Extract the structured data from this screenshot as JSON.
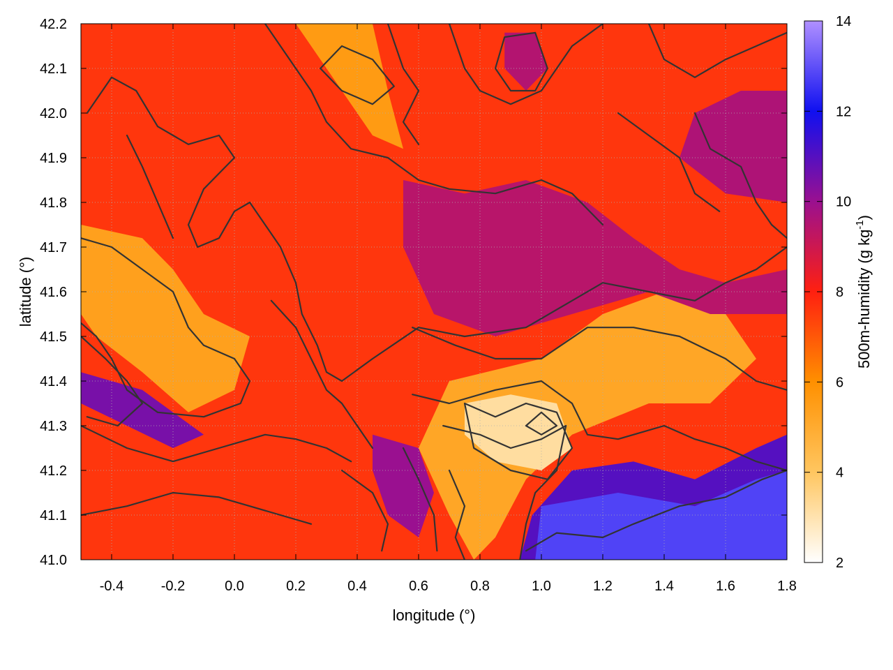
{
  "chart_data": {
    "type": "heatmap",
    "title": "",
    "xlabel": "longitude (°)",
    "ylabel": "latitude (°)",
    "xlim": [
      -0.5,
      1.8
    ],
    "ylim": [
      41.0,
      42.2
    ],
    "xticks": [
      -0.4,
      -0.2,
      0.0,
      0.2,
      0.4,
      0.6,
      0.8,
      1.0,
      1.2,
      1.4,
      1.6,
      1.8
    ],
    "xtick_labels": [
      "-0.4",
      "-0.2",
      "0.0",
      "0.2",
      "0.4",
      "0.6",
      "0.8",
      "1.0",
      "1.2",
      "1.4",
      "1.6",
      "1.8"
    ],
    "yticks": [
      41.0,
      41.1,
      41.2,
      41.3,
      41.4,
      41.5,
      41.6,
      41.7,
      41.8,
      41.9,
      42.0,
      42.1,
      42.2
    ],
    "ytick_labels": [
      "41.0",
      "41.1",
      "41.2",
      "41.3",
      "41.4",
      "41.5",
      "41.6",
      "41.7",
      "41.8",
      "41.9",
      "42.0",
      "42.1",
      "42.2"
    ],
    "grid": true,
    "colorbar": {
      "label_main": "500m-humidity (g kg",
      "label_sup": "-1",
      "label_end": ")",
      "range": [
        2,
        14
      ],
      "ticks": [
        2,
        4,
        6,
        8,
        10,
        12,
        14
      ],
      "tick_labels": [
        "2",
        "4",
        "6",
        "8",
        "10",
        "12",
        "14"
      ],
      "colormap": [
        {
          "value": 2,
          "color": "#ffffff"
        },
        {
          "value": 4,
          "color": "#ffc660"
        },
        {
          "value": 6,
          "color": "#ff9000"
        },
        {
          "value": 8,
          "color": "#ff2010"
        },
        {
          "value": 10,
          "color": "#9a1090"
        },
        {
          "value": 12,
          "color": "#1010f0"
        },
        {
          "value": 14,
          "color": "#b090ff"
        }
      ]
    },
    "humidity_regions": [
      {
        "level": 7.6,
        "lon": [
          [
            -0.5,
            42.2
          ],
          [
            1.8,
            42.2
          ],
          [
            1.8,
            41.0
          ],
          [
            -0.5,
            41.0
          ]
        ]
      },
      {
        "level": 5.6,
        "lon": [
          [
            0.2,
            42.2
          ],
          [
            0.35,
            42.05
          ],
          [
            0.45,
            41.95
          ],
          [
            0.55,
            41.92
          ],
          [
            0.5,
            42.05
          ],
          [
            0.45,
            42.2
          ]
        ]
      },
      {
        "level": 5.4,
        "lon": [
          [
            -0.5,
            41.75
          ],
          [
            -0.3,
            41.72
          ],
          [
            -0.2,
            41.65
          ],
          [
            -0.1,
            41.55
          ],
          [
            0.05,
            41.5
          ],
          [
            0.0,
            41.38
          ],
          [
            -0.15,
            41.33
          ],
          [
            -0.3,
            41.42
          ],
          [
            -0.45,
            41.5
          ],
          [
            -0.5,
            41.55
          ]
        ]
      },
      {
        "level": 5.2,
        "lon": [
          [
            0.7,
            41.4
          ],
          [
            1.0,
            41.45
          ],
          [
            1.2,
            41.55
          ],
          [
            1.4,
            41.6
          ],
          [
            1.6,
            41.55
          ],
          [
            1.7,
            41.45
          ],
          [
            1.55,
            41.35
          ],
          [
            1.35,
            41.35
          ],
          [
            1.1,
            41.28
          ],
          [
            0.95,
            41.18
          ],
          [
            0.85,
            41.05
          ],
          [
            0.78,
            41.0
          ],
          [
            0.7,
            41.1
          ],
          [
            0.6,
            41.25
          ]
        ]
      },
      {
        "level": 3.2,
        "lon": [
          [
            0.75,
            41.35
          ],
          [
            0.9,
            41.37
          ],
          [
            1.05,
            41.35
          ],
          [
            1.1,
            41.25
          ],
          [
            1.0,
            41.2
          ],
          [
            0.85,
            41.22
          ],
          [
            0.75,
            41.28
          ]
        ]
      },
      {
        "level": 9.4,
        "lon": [
          [
            0.55,
            41.85
          ],
          [
            0.75,
            41.82
          ],
          [
            0.95,
            41.85
          ],
          [
            1.15,
            41.8
          ],
          [
            1.3,
            41.72
          ],
          [
            1.45,
            41.65
          ],
          [
            1.6,
            41.62
          ],
          [
            1.8,
            41.65
          ],
          [
            1.8,
            41.55
          ],
          [
            1.55,
            41.55
          ],
          [
            1.35,
            41.6
          ],
          [
            1.1,
            41.55
          ],
          [
            0.85,
            41.5
          ],
          [
            0.65,
            41.55
          ],
          [
            0.55,
            41.7
          ]
        ]
      },
      {
        "level": 9.6,
        "lon": [
          [
            1.5,
            42.0
          ],
          [
            1.65,
            42.05
          ],
          [
            1.8,
            42.05
          ],
          [
            1.8,
            41.8
          ],
          [
            1.6,
            41.82
          ],
          [
            1.45,
            41.9
          ]
        ]
      },
      {
        "level": 9.5,
        "lon": [
          [
            0.88,
            42.18
          ],
          [
            0.98,
            42.18
          ],
          [
            1.02,
            42.1
          ],
          [
            0.95,
            42.05
          ],
          [
            0.88,
            42.1
          ]
        ]
      },
      {
        "level": 10.5,
        "lon": [
          [
            -0.5,
            41.35
          ],
          [
            -0.35,
            41.3
          ],
          [
            -0.2,
            41.25
          ],
          [
            -0.1,
            41.28
          ],
          [
            -0.3,
            41.38
          ],
          [
            -0.5,
            41.42
          ]
        ]
      },
      {
        "level": 10.0,
        "lon": [
          [
            0.45,
            41.28
          ],
          [
            0.6,
            41.25
          ],
          [
            0.65,
            41.15
          ],
          [
            0.6,
            41.05
          ],
          [
            0.5,
            41.1
          ],
          [
            0.45,
            41.2
          ]
        ]
      },
      {
        "level": 11.0,
        "lon": [
          [
            0.97,
            41.1
          ],
          [
            1.1,
            41.2
          ],
          [
            1.3,
            41.22
          ],
          [
            1.5,
            41.18
          ],
          [
            1.7,
            41.25
          ],
          [
            1.8,
            41.28
          ],
          [
            1.8,
            41.0
          ],
          [
            0.93,
            41.0
          ]
        ]
      },
      {
        "level": 12.8,
        "lon": [
          [
            1.0,
            41.12
          ],
          [
            1.25,
            41.15
          ],
          [
            1.5,
            41.12
          ],
          [
            1.7,
            41.18
          ],
          [
            1.8,
            41.2
          ],
          [
            1.8,
            41.0
          ],
          [
            0.98,
            41.0
          ]
        ]
      }
    ],
    "contour_lines": [
      [
        [
          -0.48,
          42.0
        ],
        [
          -0.4,
          42.08
        ],
        [
          -0.32,
          42.05
        ],
        [
          -0.25,
          41.97
        ],
        [
          -0.15,
          41.93
        ],
        [
          -0.05,
          41.95
        ],
        [
          0.0,
          41.9
        ],
        [
          -0.1,
          41.83
        ],
        [
          -0.15,
          41.75
        ],
        [
          -0.12,
          41.7
        ],
        [
          -0.05,
          41.72
        ],
        [
          0.0,
          41.78
        ],
        [
          0.05,
          41.8
        ],
        [
          0.1,
          41.75
        ],
        [
          0.15,
          41.7
        ],
        [
          0.2,
          41.62
        ],
        [
          0.22,
          41.55
        ],
        [
          0.27,
          41.48
        ],
        [
          0.3,
          41.42
        ],
        [
          0.35,
          41.4
        ],
        [
          0.45,
          41.45
        ],
        [
          0.6,
          41.52
        ],
        [
          0.75,
          41.5
        ],
        [
          0.95,
          41.52
        ],
        [
          1.1,
          41.58
        ],
        [
          1.2,
          41.62
        ],
        [
          1.35,
          41.6
        ],
        [
          1.5,
          41.58
        ],
        [
          1.6,
          41.62
        ],
        [
          1.7,
          41.65
        ],
        [
          1.8,
          41.7
        ]
      ],
      [
        [
          -0.5,
          41.72
        ],
        [
          -0.4,
          41.7
        ],
        [
          -0.3,
          41.65
        ],
        [
          -0.2,
          41.6
        ],
        [
          -0.15,
          41.52
        ],
        [
          -0.1,
          41.48
        ],
        [
          0.0,
          41.45
        ],
        [
          0.05,
          41.4
        ],
        [
          0.02,
          41.35
        ],
        [
          -0.1,
          41.32
        ],
        [
          -0.25,
          41.33
        ],
        [
          -0.35,
          41.38
        ],
        [
          -0.4,
          41.45
        ],
        [
          -0.45,
          41.5
        ],
        [
          -0.5,
          41.53
        ]
      ],
      [
        [
          -0.5,
          41.3
        ],
        [
          -0.35,
          41.25
        ],
        [
          -0.2,
          41.22
        ],
        [
          -0.05,
          41.25
        ],
        [
          0.1,
          41.28
        ],
        [
          0.2,
          41.27
        ],
        [
          0.3,
          41.25
        ],
        [
          0.38,
          41.22
        ]
      ],
      [
        [
          -0.5,
          41.1
        ],
        [
          -0.35,
          41.12
        ],
        [
          -0.2,
          41.15
        ],
        [
          -0.05,
          41.14
        ],
        [
          0.05,
          41.12
        ],
        [
          0.15,
          41.1
        ],
        [
          0.25,
          41.08
        ]
      ],
      [
        [
          0.1,
          42.2
        ],
        [
          0.18,
          42.12
        ],
        [
          0.25,
          42.05
        ],
        [
          0.3,
          41.98
        ],
        [
          0.38,
          41.92
        ],
        [
          0.5,
          41.9
        ],
        [
          0.6,
          41.85
        ],
        [
          0.7,
          41.83
        ],
        [
          0.85,
          41.82
        ],
        [
          1.0,
          41.85
        ],
        [
          1.1,
          41.82
        ],
        [
          1.2,
          41.75
        ]
      ],
      [
        [
          0.7,
          42.2
        ],
        [
          0.75,
          42.1
        ],
        [
          0.8,
          42.05
        ],
        [
          0.9,
          42.02
        ],
        [
          1.0,
          42.05
        ],
        [
          1.05,
          42.1
        ],
        [
          1.1,
          42.15
        ],
        [
          1.2,
          42.2
        ]
      ],
      [
        [
          0.88,
          42.17
        ],
        [
          0.85,
          42.1
        ],
        [
          0.9,
          42.05
        ],
        [
          0.98,
          42.05
        ],
        [
          1.02,
          42.1
        ],
        [
          0.98,
          42.18
        ],
        [
          0.88,
          42.17
        ]
      ],
      [
        [
          0.5,
          42.2
        ],
        [
          0.55,
          42.1
        ],
        [
          0.6,
          42.05
        ],
        [
          0.55,
          41.98
        ],
        [
          0.6,
          41.93
        ]
      ],
      [
        [
          0.28,
          42.1
        ],
        [
          0.35,
          42.05
        ],
        [
          0.45,
          42.02
        ],
        [
          0.52,
          42.06
        ],
        [
          0.45,
          42.12
        ],
        [
          0.35,
          42.15
        ],
        [
          0.28,
          42.1
        ]
      ],
      [
        [
          0.58,
          41.52
        ],
        [
          0.72,
          41.48
        ],
        [
          0.85,
          41.45
        ],
        [
          1.0,
          41.45
        ],
        [
          1.15,
          41.52
        ],
        [
          1.3,
          41.52
        ],
        [
          1.45,
          41.5
        ],
        [
          1.6,
          41.45
        ],
        [
          1.7,
          41.4
        ],
        [
          1.8,
          41.38
        ]
      ],
      [
        [
          0.58,
          41.37
        ],
        [
          0.7,
          41.35
        ],
        [
          0.85,
          41.38
        ],
        [
          1.0,
          41.4
        ],
        [
          1.1,
          41.35
        ],
        [
          1.15,
          41.28
        ],
        [
          1.25,
          41.27
        ],
        [
          1.4,
          41.3
        ],
        [
          1.5,
          41.27
        ],
        [
          1.6,
          41.25
        ],
        [
          1.7,
          41.22
        ],
        [
          1.8,
          41.2
        ]
      ],
      [
        [
          0.68,
          41.3
        ],
        [
          0.8,
          41.28
        ],
        [
          0.9,
          41.25
        ],
        [
          1.0,
          41.27
        ],
        [
          1.08,
          41.3
        ],
        [
          1.05,
          41.2
        ],
        [
          0.98,
          41.15
        ],
        [
          0.95,
          41.08
        ],
        [
          0.93,
          41.0
        ]
      ],
      [
        [
          0.75,
          41.35
        ],
        [
          0.85,
          41.32
        ],
        [
          0.95,
          41.35
        ],
        [
          1.05,
          41.33
        ],
        [
          1.1,
          41.25
        ],
        [
          1.02,
          41.18
        ],
        [
          0.9,
          41.2
        ],
        [
          0.78,
          41.25
        ],
        [
          0.75,
          41.35
        ]
      ],
      [
        [
          0.95,
          41.3
        ],
        [
          1.0,
          41.33
        ],
        [
          1.05,
          41.3
        ],
        [
          1.0,
          41.28
        ],
        [
          0.95,
          41.3
        ]
      ],
      [
        [
          0.35,
          41.2
        ],
        [
          0.45,
          41.15
        ],
        [
          0.5,
          41.08
        ],
        [
          0.48,
          41.02
        ]
      ],
      [
        [
          0.55,
          41.25
        ],
        [
          0.6,
          41.18
        ],
        [
          0.65,
          41.1
        ],
        [
          0.66,
          41.02
        ]
      ],
      [
        [
          0.7,
          41.2
        ],
        [
          0.75,
          41.12
        ],
        [
          0.72,
          41.05
        ],
        [
          0.75,
          41.0
        ]
      ],
      [
        [
          0.95,
          41.02
        ],
        [
          1.05,
          41.06
        ],
        [
          1.2,
          41.05
        ],
        [
          1.3,
          41.08
        ],
        [
          1.45,
          41.12
        ],
        [
          1.6,
          41.14
        ],
        [
          1.72,
          41.18
        ],
        [
          1.8,
          41.2
        ]
      ],
      [
        [
          1.5,
          42.0
        ],
        [
          1.55,
          41.92
        ],
        [
          1.65,
          41.88
        ],
        [
          1.7,
          41.8
        ],
        [
          1.75,
          41.75
        ],
        [
          1.8,
          41.72
        ]
      ],
      [
        [
          1.35,
          42.2
        ],
        [
          1.4,
          42.12
        ],
        [
          1.5,
          42.08
        ],
        [
          1.6,
          42.12
        ],
        [
          1.7,
          42.15
        ],
        [
          1.8,
          42.18
        ]
      ],
      [
        [
          1.25,
          42.0
        ],
        [
          1.35,
          41.95
        ],
        [
          1.45,
          41.9
        ],
        [
          1.5,
          41.82
        ],
        [
          1.58,
          41.78
        ]
      ],
      [
        [
          -0.5,
          41.5
        ],
        [
          -0.42,
          41.45
        ],
        [
          -0.35,
          41.4
        ],
        [
          -0.3,
          41.35
        ],
        [
          -0.38,
          41.3
        ],
        [
          -0.48,
          41.32
        ]
      ],
      [
        [
          0.12,
          41.58
        ],
        [
          0.2,
          41.52
        ],
        [
          0.25,
          41.45
        ],
        [
          0.3,
          41.38
        ],
        [
          0.35,
          41.35
        ],
        [
          0.4,
          41.3
        ],
        [
          0.45,
          41.25
        ]
      ],
      [
        [
          -0.2,
          41.72
        ],
        [
          -0.25,
          41.8
        ],
        [
          -0.3,
          41.88
        ],
        [
          -0.35,
          41.95
        ]
      ]
    ]
  }
}
